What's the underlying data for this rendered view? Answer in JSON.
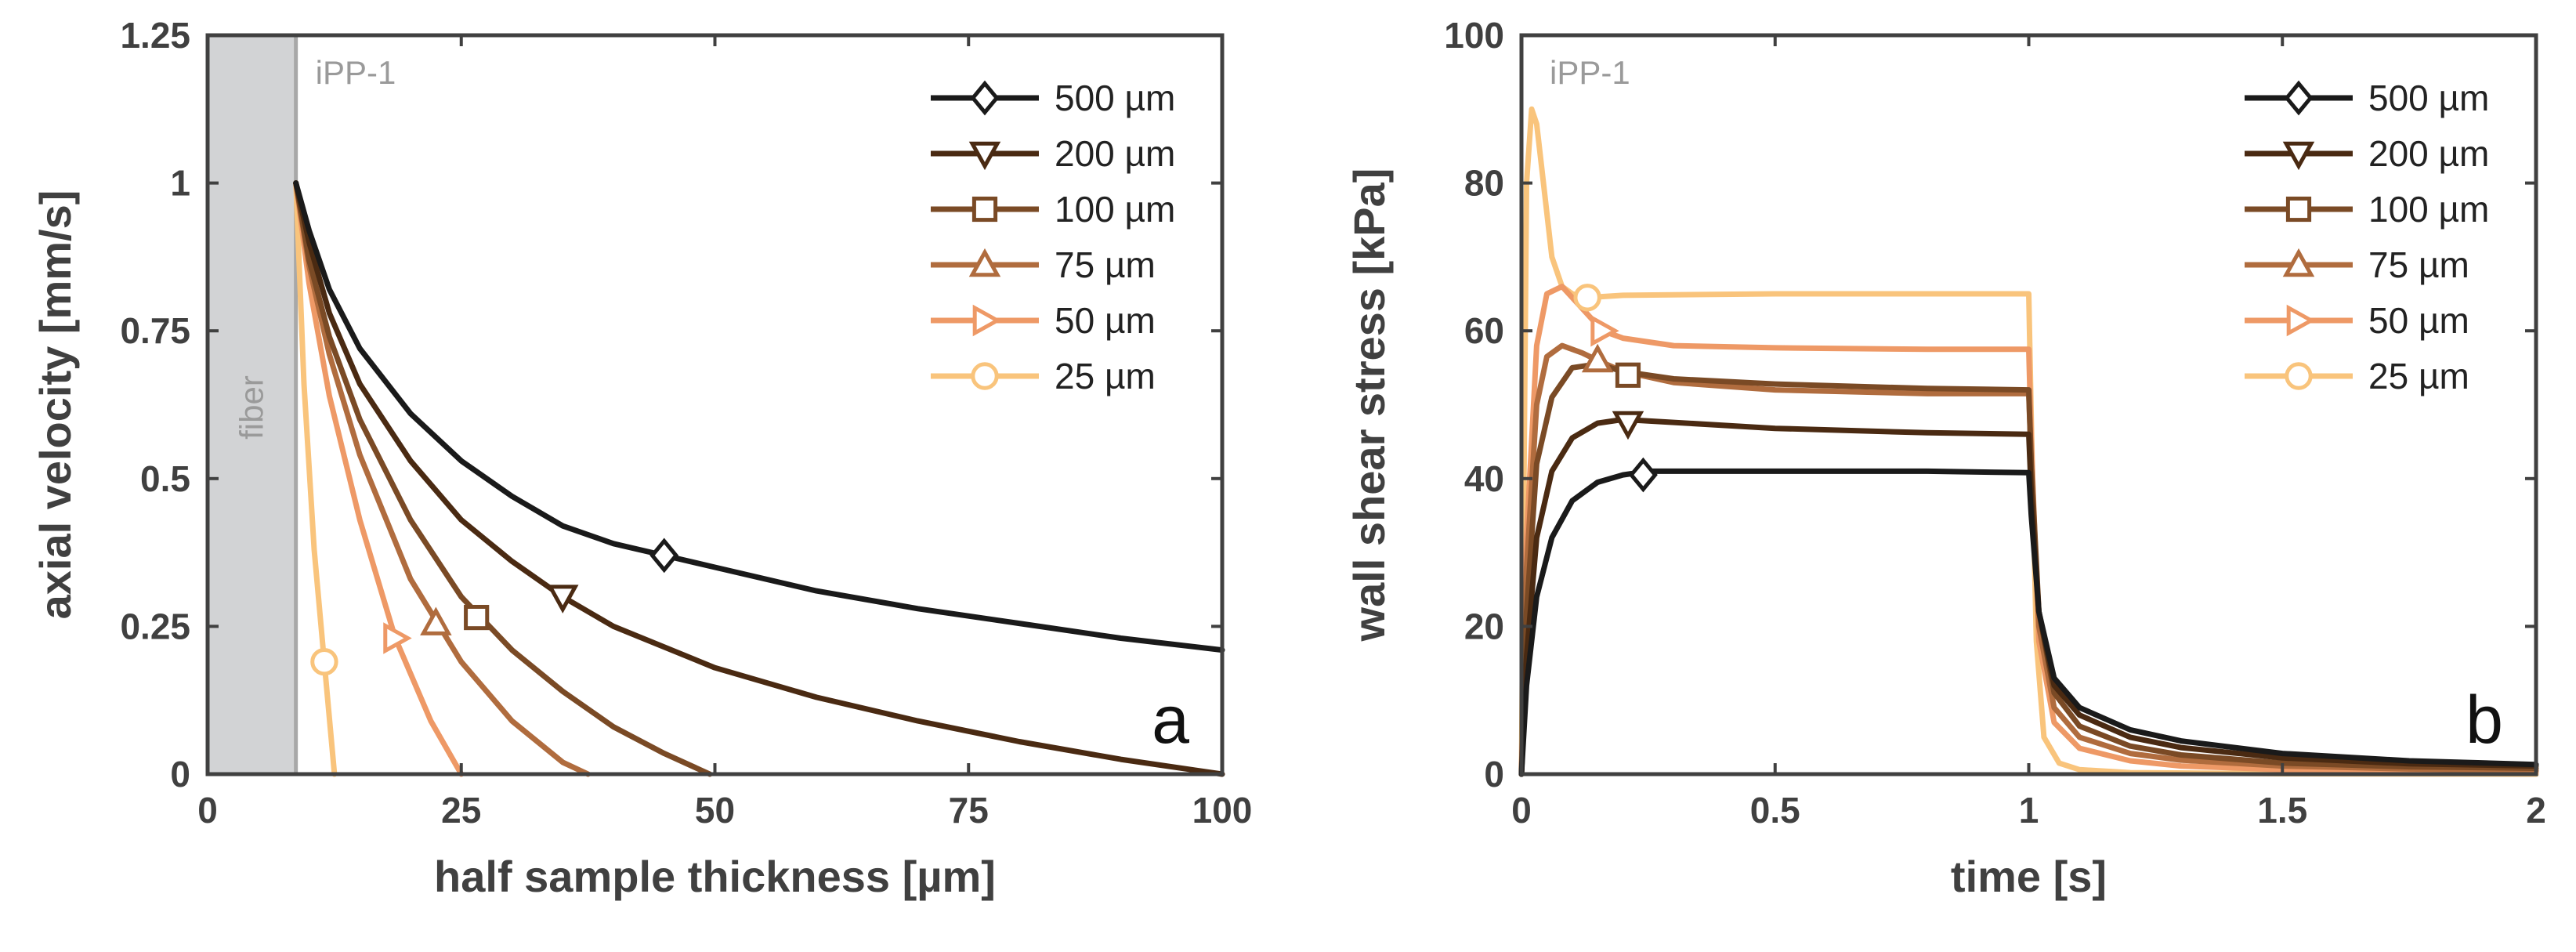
{
  "chart_data": [
    {
      "type": "line",
      "panel_label": "a",
      "xlabel": "half sample thickness [µm]",
      "ylabel": "axial velocity [mm/s]",
      "xlim": [
        0,
        100
      ],
      "ylim": [
        0,
        1.25
      ],
      "xticks": [
        0,
        25,
        50,
        75,
        100
      ],
      "xtick_labels": [
        "0",
        "25",
        "50",
        "75",
        "100"
      ],
      "yticks": [
        0,
        0.25,
        0.5,
        0.75,
        1,
        1.25
      ],
      "ytick_labels": [
        "0",
        "0.25",
        "0.5",
        "0.75",
        "1",
        "1.25"
      ],
      "grid": false,
      "legend_position": "top-right",
      "annotations": {
        "sample": "iPP-1",
        "fiber_label": "fiber",
        "fiber_region": [
          0,
          8.7
        ]
      },
      "series": [
        {
          "name": "500 µm",
          "color": "#1a1a1a",
          "marker": "diamond",
          "marker_point": [
            45,
            0.37
          ],
          "x": [
            8.7,
            10,
            12,
            15,
            20,
            25,
            30,
            35,
            40,
            45,
            50,
            60,
            70,
            80,
            90,
            100
          ],
          "y": [
            1.0,
            0.92,
            0.82,
            0.72,
            0.61,
            0.53,
            0.47,
            0.42,
            0.39,
            0.37,
            0.35,
            0.31,
            0.28,
            0.255,
            0.23,
            0.21
          ]
        },
        {
          "name": "200 µm",
          "color": "#4a2a12",
          "marker": "triangle-down",
          "marker_point": [
            35,
            0.3
          ],
          "x": [
            8.7,
            10,
            12,
            15,
            20,
            25,
            30,
            35,
            40,
            50,
            60,
            70,
            80,
            90,
            100
          ],
          "y": [
            1.0,
            0.9,
            0.78,
            0.66,
            0.53,
            0.43,
            0.36,
            0.3,
            0.25,
            0.18,
            0.13,
            0.09,
            0.055,
            0.025,
            0.0
          ]
        },
        {
          "name": "100 µm",
          "color": "#7a4a25",
          "marker": "square",
          "marker_point": [
            26.5,
            0.265
          ],
          "x": [
            8.7,
            10,
            12,
            15,
            20,
            25,
            30,
            35,
            40,
            45,
            49.5
          ],
          "y": [
            1.0,
            0.87,
            0.74,
            0.6,
            0.43,
            0.3,
            0.21,
            0.14,
            0.08,
            0.035,
            0.0
          ]
        },
        {
          "name": "75 µm",
          "color": "#b06c3e",
          "marker": "triangle-up",
          "marker_point": [
            22.5,
            0.255
          ],
          "x": [
            8.7,
            10,
            12,
            15,
            20,
            25,
            30,
            35,
            37.5
          ],
          "y": [
            1.0,
            0.86,
            0.71,
            0.54,
            0.33,
            0.19,
            0.09,
            0.02,
            0.0
          ]
        },
        {
          "name": "50 µm",
          "color": "#ee9966",
          "marker": "triangle-right",
          "marker_point": [
            18.5,
            0.23
          ],
          "x": [
            8.7,
            10,
            12,
            15,
            18.5,
            22,
            25
          ],
          "y": [
            1.0,
            0.83,
            0.64,
            0.43,
            0.23,
            0.09,
            0.0
          ]
        },
        {
          "name": "25 µm",
          "color": "#f9c47c",
          "marker": "circle",
          "marker_point": [
            11.5,
            0.19
          ],
          "x": [
            8.7,
            9.5,
            10.5,
            11.5,
            12.5
          ],
          "y": [
            1.0,
            0.66,
            0.38,
            0.19,
            0.0
          ]
        }
      ]
    },
    {
      "type": "line",
      "panel_label": "b",
      "xlabel": "time [s]",
      "ylabel": "wall shear stress [kPa]",
      "xlim": [
        0,
        2
      ],
      "ylim": [
        0,
        100
      ],
      "xticks": [
        0,
        0.5,
        1,
        1.5,
        2
      ],
      "xtick_labels": [
        "0",
        "0.5",
        "1",
        "1.5",
        "2"
      ],
      "yticks": [
        0,
        20,
        40,
        60,
        80,
        100
      ],
      "ytick_labels": [
        "0",
        "20",
        "40",
        "60",
        "80",
        "100"
      ],
      "grid": false,
      "legend_position": "top-right",
      "annotations": {
        "sample": "iPP-1"
      },
      "series": [
        {
          "name": "500 µm",
          "color": "#1a1a1a",
          "marker": "diamond",
          "marker_point": [
            0.24,
            40.5
          ],
          "x": [
            0,
            0.01,
            0.03,
            0.06,
            0.1,
            0.15,
            0.2,
            0.25,
            0.5,
            0.8,
            1.0,
            1.005,
            1.02,
            1.05,
            1.1,
            1.2,
            1.3,
            1.5,
            1.75,
            2.0
          ],
          "y": [
            0,
            12,
            24,
            32,
            37,
            39.5,
            40.5,
            41,
            41,
            41,
            40.8,
            35,
            22,
            13,
            9,
            6,
            4.5,
            2.8,
            1.8,
            1.3
          ]
        },
        {
          "name": "200 µm",
          "color": "#4a2a12",
          "marker": "triangle-down",
          "marker_point": [
            0.21,
            47.5
          ],
          "x": [
            0,
            0.01,
            0.03,
            0.06,
            0.1,
            0.15,
            0.2,
            0.25,
            0.5,
            0.8,
            1.0,
            1.005,
            1.02,
            1.05,
            1.1,
            1.2,
            1.3,
            1.5,
            1.75,
            2.0
          ],
          "y": [
            0,
            16,
            32,
            41,
            45.5,
            47.5,
            48,
            47.8,
            46.8,
            46.2,
            46,
            38,
            22,
            12,
            8,
            5,
            3.6,
            2.2,
            1.4,
            1.1
          ]
        },
        {
          "name": "100 µm",
          "color": "#7a4a25",
          "marker": "square",
          "marker_point": [
            0.21,
            54
          ],
          "x": [
            0,
            0.01,
            0.03,
            0.06,
            0.1,
            0.15,
            0.2,
            0.3,
            0.5,
            0.8,
            1.0,
            1.005,
            1.02,
            1.05,
            1.1,
            1.2,
            1.3,
            1.5,
            1.75,
            2.0
          ],
          "y": [
            0,
            22,
            42,
            51,
            55,
            55.5,
            54.5,
            53.5,
            52.8,
            52.2,
            52,
            42,
            22,
            11,
            6.5,
            3.8,
            2.6,
            1.5,
            1.0,
            0.8
          ]
        },
        {
          "name": "75 µm",
          "color": "#b06c3e",
          "marker": "triangle-up",
          "marker_point": [
            0.15,
            56
          ],
          "x": [
            0,
            0.01,
            0.03,
            0.05,
            0.08,
            0.12,
            0.15,
            0.2,
            0.3,
            0.5,
            0.8,
            1.0,
            1.005,
            1.02,
            1.05,
            1.1,
            1.2,
            1.3,
            1.5,
            1.75,
            2.0
          ],
          "y": [
            0,
            28,
            50,
            56.5,
            58,
            57,
            56,
            54.5,
            53,
            52,
            51.5,
            51.5,
            42,
            20,
            9,
            5,
            2.8,
            1.9,
            1.1,
            0.7,
            0.5
          ]
        },
        {
          "name": "50 µm",
          "color": "#ee9966",
          "marker": "triangle-right",
          "marker_point": [
            0.16,
            60
          ],
          "x": [
            0,
            0.01,
            0.03,
            0.05,
            0.08,
            0.12,
            0.16,
            0.2,
            0.3,
            0.5,
            0.8,
            1.0,
            1.005,
            1.02,
            1.05,
            1.1,
            1.2,
            1.3,
            1.5,
            1.75,
            2.0
          ],
          "y": [
            0,
            32,
            58,
            65,
            66,
            63,
            60,
            59,
            58,
            57.7,
            57.5,
            57.5,
            45,
            18,
            7,
            3.5,
            1.8,
            1.1,
            0.6,
            0.4,
            0.3
          ]
        },
        {
          "name": "25 µm",
          "color": "#f9c47c",
          "marker": "circle",
          "marker_point": [
            0.13,
            64.5
          ],
          "x": [
            0,
            0.005,
            0.01,
            0.02,
            0.03,
            0.04,
            0.06,
            0.08,
            0.1,
            0.13,
            0.2,
            0.5,
            0.8,
            1.0,
            1.005,
            1.015,
            1.03,
            1.06,
            1.1,
            1.2,
            1.5,
            2.0
          ],
          "y": [
            0,
            40,
            80,
            90,
            88,
            82,
            70,
            66,
            65,
            64.5,
            64.8,
            65,
            65,
            65,
            48,
            18,
            5,
            1.5,
            0.6,
            0.2,
            0.05,
            0.0
          ]
        }
      ]
    }
  ]
}
